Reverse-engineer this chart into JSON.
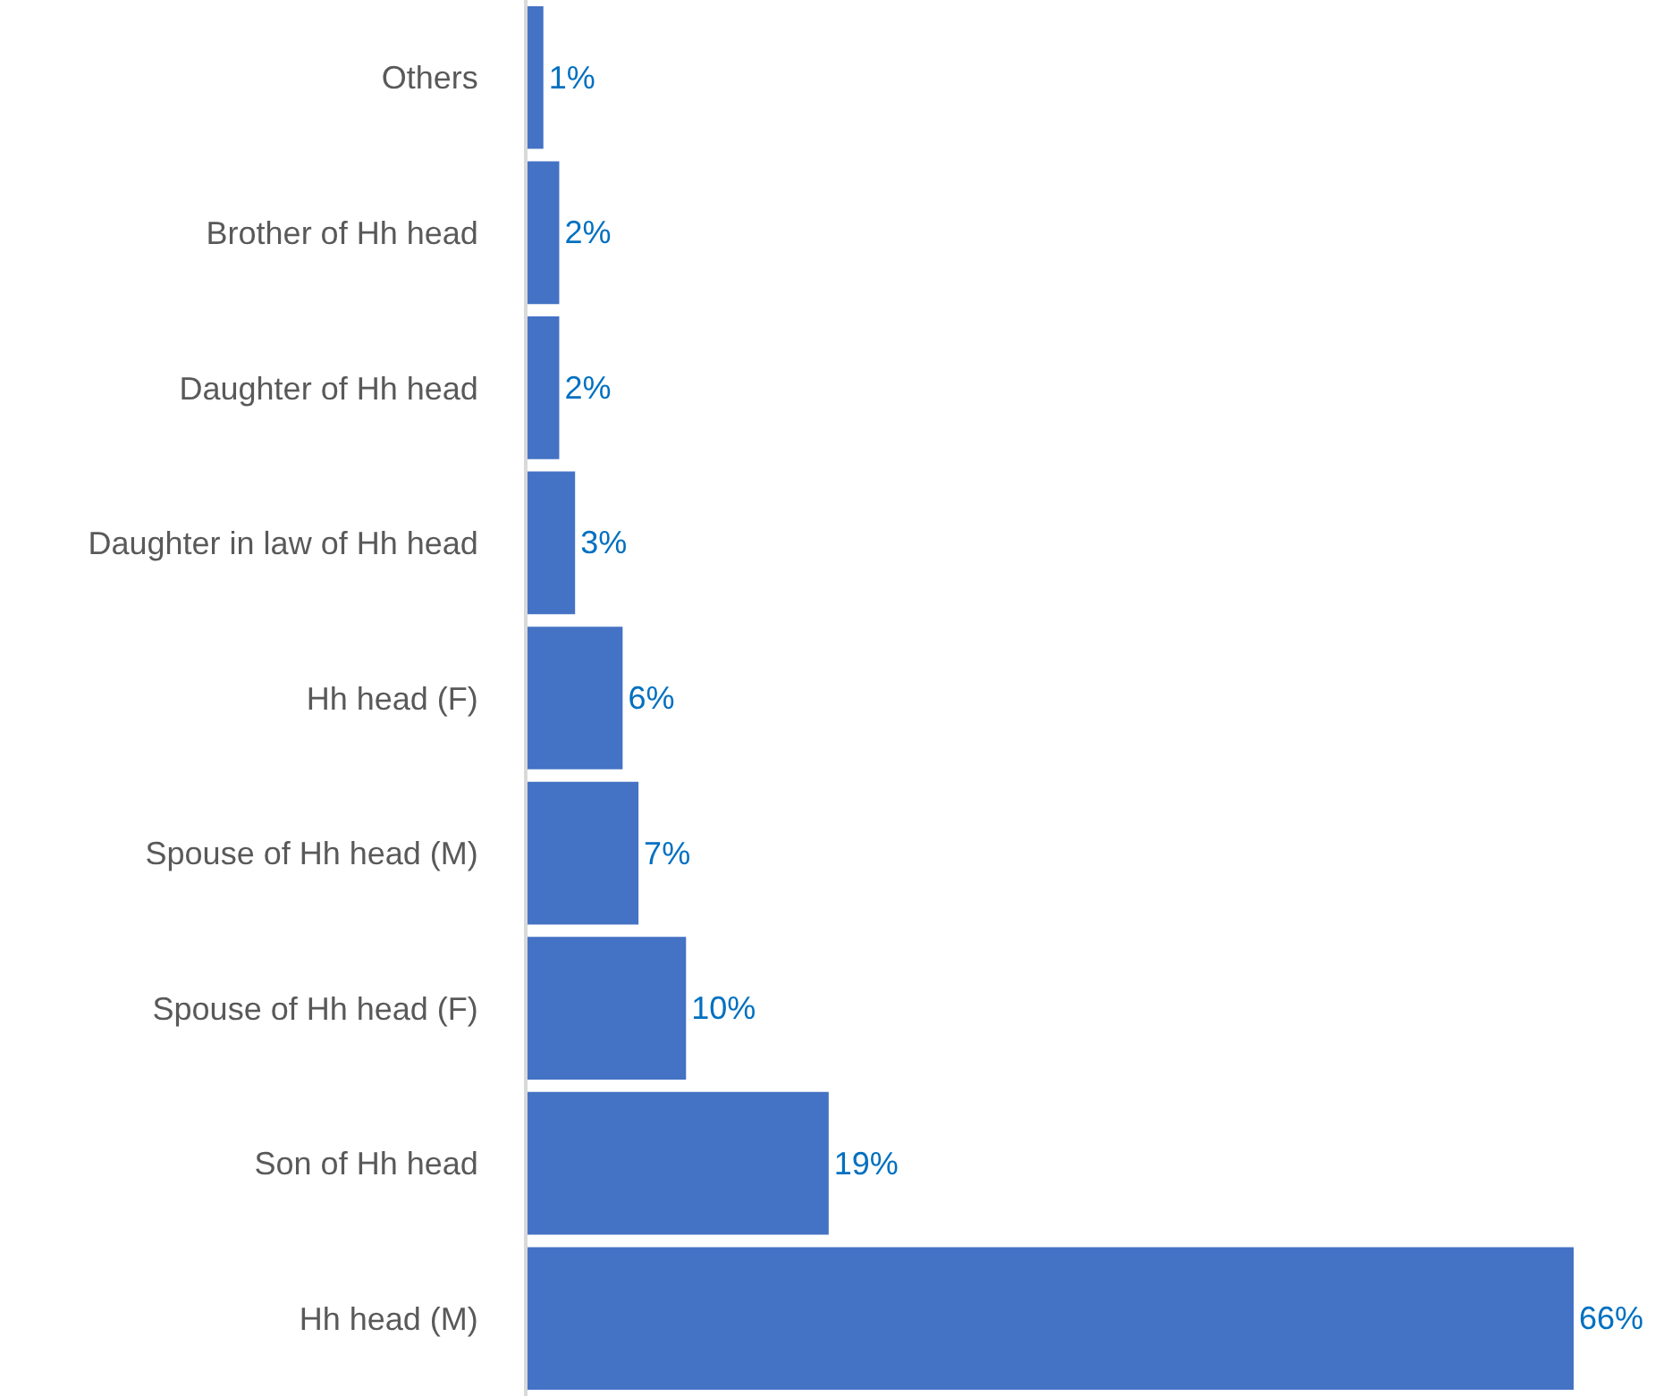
{
  "chart_data": {
    "type": "bar",
    "orientation": "horizontal",
    "categories": [
      "Others",
      "Brother of Hh head",
      "Daughter of Hh head",
      "Daughter in law of Hh head",
      "Hh head (F)",
      "Spouse of Hh head (M)",
      "Spouse of Hh head (F)",
      "Son of Hh head",
      "Hh head (M)"
    ],
    "values": [
      1,
      2,
      2,
      3,
      6,
      7,
      10,
      19,
      66
    ],
    "value_labels": [
      "1%",
      "2%",
      "2%",
      "3%",
      "6%",
      "7%",
      "10%",
      "19%",
      "66%"
    ],
    "color": "#4472c4",
    "xlim": [
      0,
      66
    ],
    "tick_labels": "y"
  }
}
